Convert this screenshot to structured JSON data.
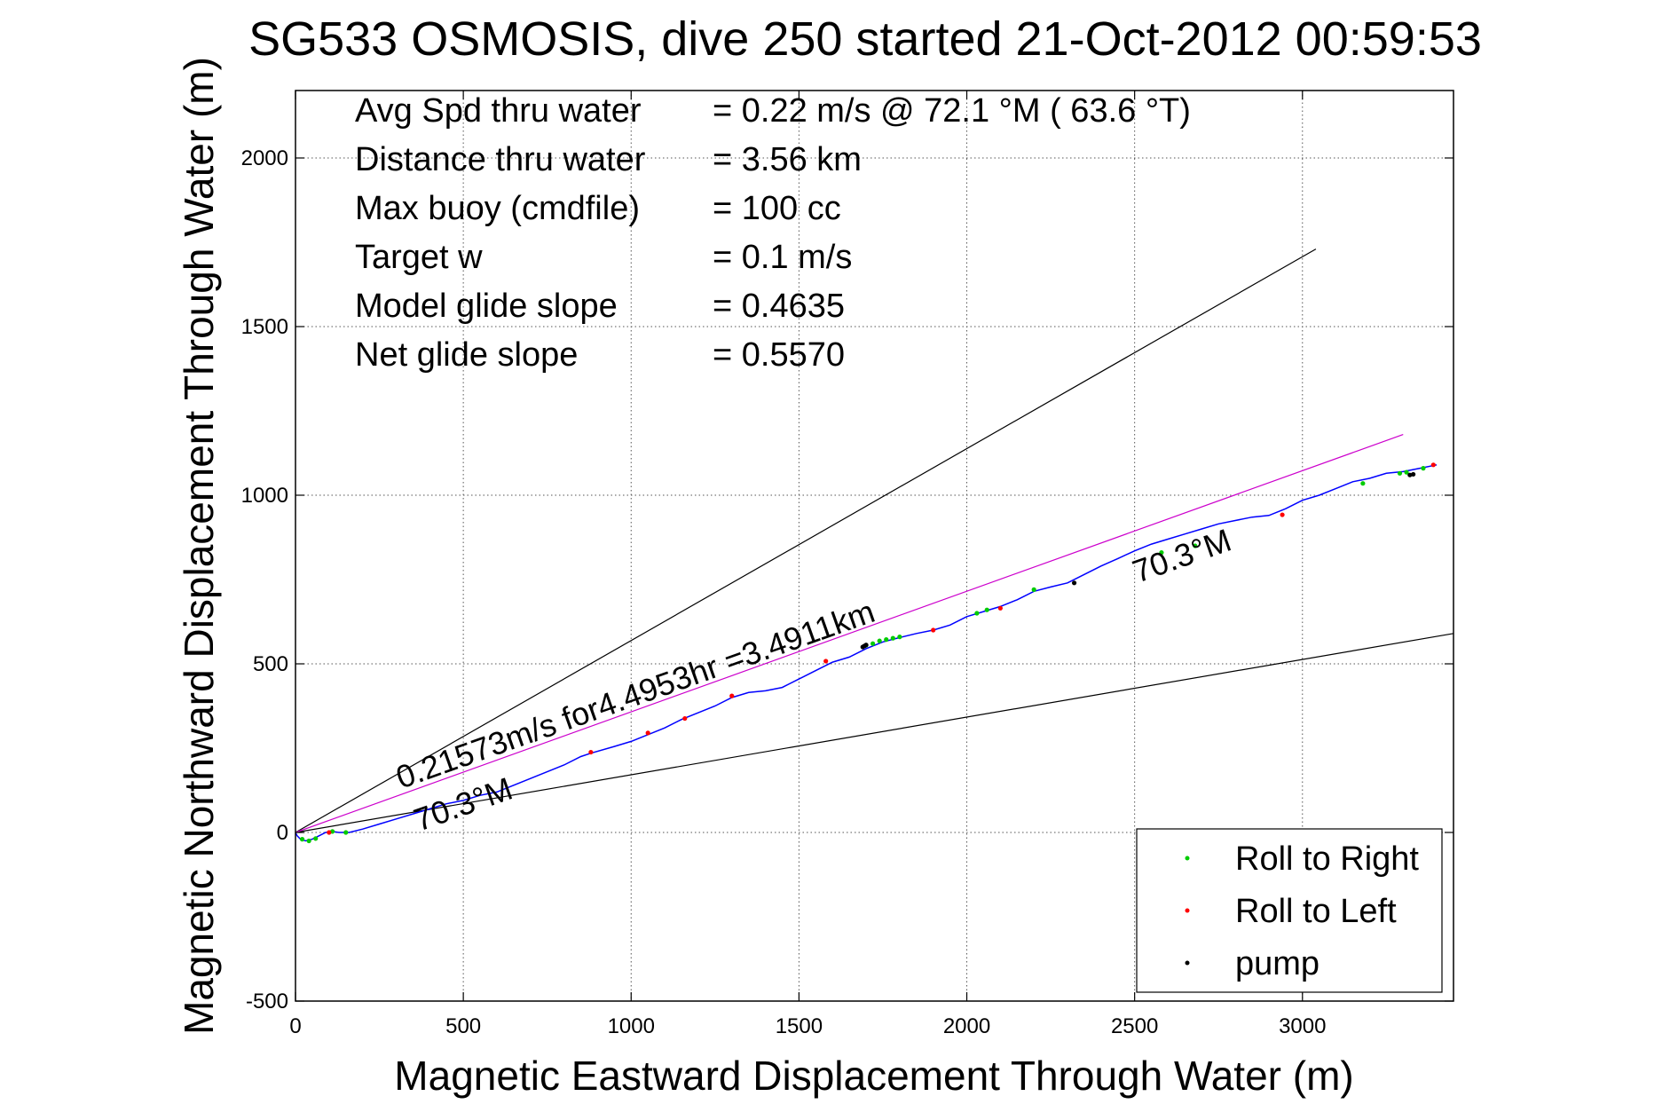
{
  "colors": {
    "background": "#ffffff",
    "axes": "#000000",
    "grid": "#555555",
    "track": "#0000ff",
    "vector": "#cc00cc",
    "heading_lines": "#000000",
    "roll_right": "#00cc00",
    "roll_left": "#ff0000",
    "pump": "#000000"
  },
  "chart_data": {
    "type": "line",
    "title": "SG533 OSMOSIS, dive 250 started 21-Oct-2012 00:59:53",
    "xlabel": "Magnetic Eastward Displacement Through Water (m)",
    "ylabel": "Magnetic Northward Displacement Through Water (m)",
    "xlim": [
      0,
      3450
    ],
    "ylim": [
      -500,
      2200
    ],
    "xticks": [
      0,
      500,
      1000,
      1500,
      2000,
      2500,
      3000
    ],
    "yticks": [
      -500,
      0,
      500,
      1000,
      1500,
      2000
    ],
    "grid": true,
    "legend_position": "bottom-right",
    "legend": [
      "Roll to Right",
      "Roll to Left",
      "pump"
    ],
    "info_lines": [
      {
        "label": "Avg Spd thru water",
        "value": "=  0.22 m/s @  72.1 °M ( 63.6 °T)"
      },
      {
        "label": "Distance thru water",
        "value": "=  3.56 km"
      },
      {
        "label": "Max buoy (cmdfile)",
        "value": "= 100 cc"
      },
      {
        "label": "Target w",
        "value": "= 0.1 m/s"
      },
      {
        "label": "Model glide slope",
        "value": "= 0.4635"
      },
      {
        "label": "Net glide slope",
        "value": "= 0.5570"
      }
    ],
    "annotations": {
      "vector_label": "0.21573m/s for4.4953hr =3.4911km",
      "heading_label_top": "70.3°M",
      "heading_label_bottom": "70.3°M"
    },
    "reference_lines": [
      {
        "kind": "heading_bound",
        "x": [
          0,
          3040
        ],
        "y": [
          0,
          1730
        ]
      },
      {
        "kind": "heading_bound",
        "x": [
          0,
          3450
        ],
        "y": [
          0,
          590
        ]
      },
      {
        "kind": "avg_vector",
        "x": [
          0,
          3300
        ],
        "y": [
          0,
          1180
        ]
      }
    ],
    "track": {
      "x": [
        0,
        5,
        15,
        30,
        50,
        70,
        90,
        110,
        130,
        160,
        200,
        250,
        300,
        350,
        400,
        450,
        500,
        550,
        600,
        650,
        700,
        750,
        800,
        850,
        880,
        950,
        1000,
        1050,
        1100,
        1150,
        1200,
        1250,
        1300,
        1350,
        1400,
        1450,
        1500,
        1550,
        1600,
        1650,
        1700,
        1750,
        1800,
        1850,
        1900,
        1950,
        2000,
        2050,
        2100,
        2150,
        2200,
        2250,
        2300,
        2350,
        2400,
        2450,
        2500,
        2550,
        2600,
        2650,
        2700,
        2750,
        2800,
        2850,
        2900,
        2950,
        3000,
        3050,
        3100,
        3150,
        3200,
        3250,
        3300,
        3350,
        3400
      ],
      "y": [
        0,
        -10,
        -20,
        -25,
        -20,
        -10,
        0,
        3,
        0,
        0,
        10,
        25,
        40,
        55,
        70,
        85,
        95,
        110,
        120,
        140,
        160,
        180,
        200,
        225,
        235,
        255,
        270,
        290,
        310,
        335,
        355,
        375,
        400,
        415,
        420,
        430,
        455,
        480,
        505,
        520,
        545,
        565,
        578,
        590,
        600,
        615,
        640,
        655,
        670,
        690,
        715,
        728,
        740,
        765,
        790,
        812,
        835,
        855,
        870,
        885,
        900,
        915,
        925,
        935,
        940,
        960,
        985,
        1000,
        1020,
        1040,
        1050,
        1065,
        1070,
        1080,
        1090
      ]
    },
    "roll_right_points": {
      "x": [
        20,
        40,
        60,
        110,
        150,
        1700,
        1720,
        1740,
        1760,
        1780,
        1800,
        2030,
        2060,
        2200,
        2580,
        2680,
        3180,
        3290,
        3310,
        3360
      ],
      "y": [
        -20,
        -25,
        -18,
        3,
        0,
        555,
        560,
        568,
        572,
        576,
        580,
        650,
        660,
        720,
        830,
        850,
        1035,
        1065,
        1068,
        1080
      ]
    },
    "roll_left_points": {
      "x": [
        100,
        880,
        1050,
        1160,
        1300,
        1580,
        1900,
        2100,
        2940,
        3390
      ],
      "y": [
        0,
        238,
        295,
        338,
        405,
        508,
        600,
        665,
        942,
        1090
      ]
    },
    "pump_points": {
      "x": [
        1690,
        1695,
        1700,
        2320,
        3320,
        3330
      ],
      "y": [
        550,
        553,
        556,
        740,
        1060,
        1062
      ]
    }
  }
}
